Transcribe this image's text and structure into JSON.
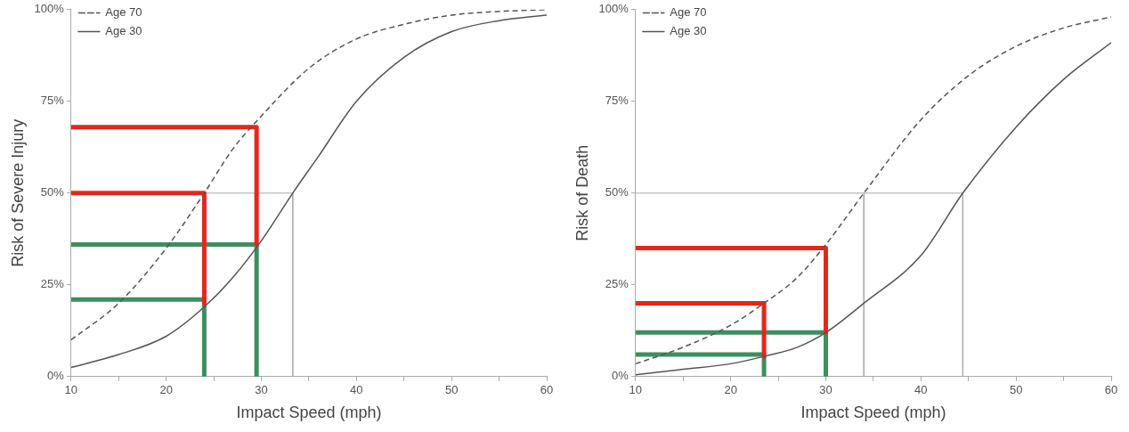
{
  "chart_data": [
    {
      "type": "line",
      "xlabel": "Impact Speed (mph)",
      "ylabel": "Risk of Severe Injury",
      "xlim": [
        10,
        60
      ],
      "ylim": [
        0,
        100
      ],
      "xticks": [
        10,
        {
          "value": 15,
          "label": null
        },
        20,
        {
          "value": 25,
          "label": null
        },
        30,
        {
          "value": 35,
          "label": null
        },
        40,
        {
          "value": 45,
          "label": null
        },
        50,
        {
          "value": 55,
          "label": null
        },
        60
      ],
      "yticks": [
        {
          "value": 0,
          "label": "0%"
        },
        {
          "value": 25,
          "label": "25%"
        },
        {
          "value": 50,
          "label": "50%"
        },
        {
          "value": 75,
          "label": "75%"
        },
        {
          "value": 100,
          "label": "100%"
        }
      ],
      "grid": false,
      "legend": "top left",
      "marker": "none",
      "series": [
        {
          "name": "Age 70",
          "color": "#555555",
          "line_style": "dashed",
          "x": [
            10,
            15,
            20,
            24,
            27,
            30,
            35,
            40,
            45,
            50,
            55,
            60
          ],
          "values": [
            10,
            20,
            35,
            50,
            62,
            71,
            84,
            92,
            96,
            98.5,
            99.5,
            100
          ]
        },
        {
          "name": "Age 30",
          "color": "#555555",
          "x": [
            10,
            15,
            20,
            24,
            27,
            30,
            33.3,
            36,
            40,
            45,
            50,
            55,
            60
          ],
          "values": [
            2.5,
            6,
            11,
            19,
            27,
            37,
            50,
            60,
            75,
            87,
            94,
            97,
            98.5
          ]
        },
        {
          "color": "#aaaaaa",
          "line_style": "solid",
          "x": [
            10,
            33.3,
            33.3
          ],
          "values": [
            50,
            50,
            0
          ]
        },
        {
          "color": "#e8251b",
          "x": [
            10,
            29.5,
            29.5
          ],
          "values": [
            68,
            68,
            36
          ]
        },
        {
          "color": "#e8251b",
          "x": [
            10,
            24,
            24
          ],
          "values": [
            50,
            50,
            20
          ]
        },
        {
          "color": "#3d8f5e",
          "x": [
            10,
            29.5,
            29.5
          ],
          "values": [
            36,
            36,
            0
          ]
        },
        {
          "color": "#3d8f5e",
          "x": [
            10,
            24,
            24
          ],
          "values": [
            21,
            21,
            0
          ]
        }
      ]
    },
    {
      "type": "line",
      "xlabel": "Impact Speed (mph)",
      "ylabel": "Risk of Death",
      "xlim": [
        10,
        60
      ],
      "ylim": [
        0,
        100
      ],
      "xticks": [
        10,
        {
          "value": 15,
          "label": null
        },
        20,
        {
          "value": 25,
          "label": null
        },
        30,
        {
          "value": 35,
          "label": null
        },
        40,
        {
          "value": 45,
          "label": null
        },
        50,
        {
          "value": 55,
          "label": null
        },
        60
      ],
      "yticks": [
        {
          "value": 0,
          "label": "0%"
        },
        {
          "value": 25,
          "label": "25%"
        },
        {
          "value": 50,
          "label": "50%"
        },
        {
          "value": 75,
          "label": "75%"
        },
        {
          "value": 100,
          "label": "100%"
        }
      ],
      "grid": false,
      "legend": "top left",
      "marker": "none",
      "series": [
        {
          "name": "Age 70",
          "color": "#555555",
          "line_style": "dashed",
          "x": [
            10,
            15,
            20,
            23.5,
            27,
            30,
            34,
            40,
            45,
            50,
            55,
            60
          ],
          "values": [
            3.5,
            8,
            14,
            20,
            27,
            36,
            50,
            70,
            82,
            90,
            95,
            98
          ]
        },
        {
          "name": "Age 30",
          "color": "#555555",
          "x": [
            10,
            15,
            20,
            23.5,
            27,
            30,
            34,
            40,
            44.4,
            50,
            55,
            60
          ],
          "values": [
            0.5,
            2,
            3.5,
            5.5,
            8,
            12,
            20,
            33,
            50,
            68,
            81,
            91
          ]
        },
        {
          "color": "#aaaaaa",
          "line_style": "solid",
          "x": [
            10,
            44.4,
            44.4
          ],
          "values": [
            50,
            50,
            0
          ]
        },
        {
          "color": "#aaaaaa",
          "line_style": "solid",
          "x": [
            34,
            34
          ],
          "values": [
            50,
            0
          ]
        },
        {
          "color": "#e8251b",
          "x": [
            10,
            30,
            30
          ],
          "values": [
            35,
            35,
            12
          ]
        },
        {
          "color": "#e8251b",
          "x": [
            10,
            23.5,
            23.5
          ],
          "values": [
            20,
            20,
            5.5
          ]
        },
        {
          "color": "#3d8f5e",
          "x": [
            10,
            30,
            30
          ],
          "values": [
            12,
            12,
            0
          ]
        },
        {
          "color": "#3d8f5e",
          "x": [
            10,
            23.5,
            23.5
          ],
          "values": [
            6,
            6,
            0
          ]
        }
      ]
    }
  ]
}
